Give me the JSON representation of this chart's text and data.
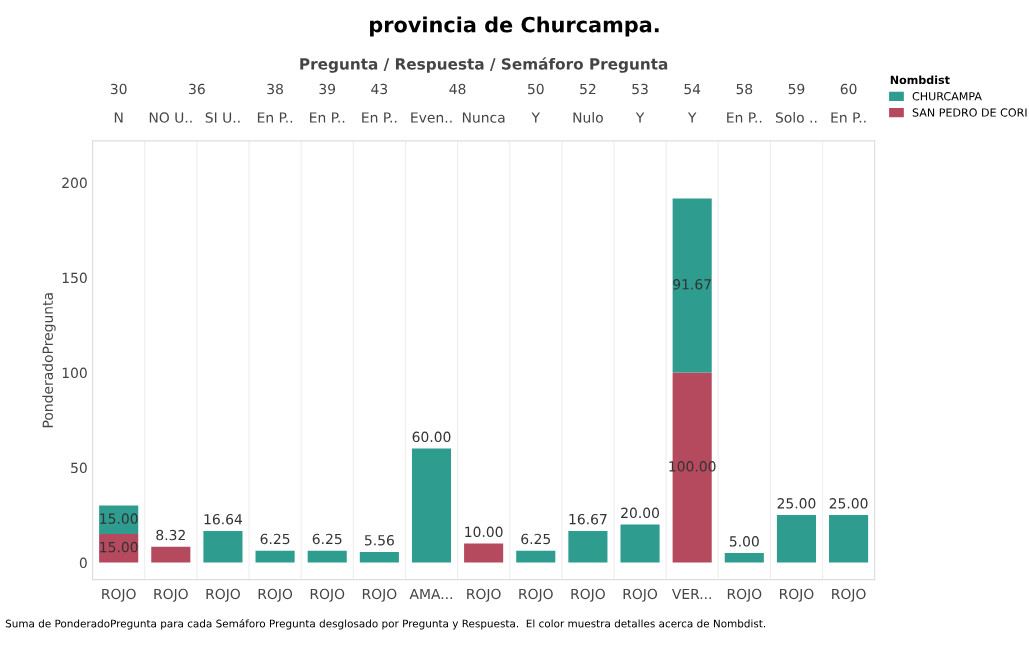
{
  "chart_data": {
    "type": "bar",
    "stacked": true,
    "title": "provincia de Churcampa.",
    "xlabel": "Pregunta / Respuesta / Semáforo Pregunta",
    "ylabel": "PonderadoPregunta",
    "legend_title": "Nombdist",
    "categories": [
      "30\nN\nROJO",
      "36\nNO U..\nROJO",
      "\nSI U..\nROJO",
      "38\nEn P..\nROJO",
      "39\nEn P..\nROJO",
      "43\nEn P..\nROJO",
      "48\nEven..\nAMA...",
      "\nNunca\nROJO",
      "50\nY\nROJO",
      "52\nNulo\nROJO",
      "53\nY\nROJO",
      "54\nY\nVER...",
      "58\nEn P..\nROJO",
      "59\nSolo ..\nROJO",
      "60\nEn P..\nROJO"
    ],
    "ylim": [
      -9,
      222
    ],
    "yticks": [
      0,
      50,
      100,
      150,
      200
    ],
    "series": [
      {
        "name": "SAN PEDRO DE CORI",
        "color": "#b5495e",
        "values": [
          15,
          8.32,
          null,
          null,
          null,
          null,
          null,
          10,
          null,
          null,
          null,
          100,
          null,
          null,
          null
        ],
        "value_labels": [
          "15.00",
          "8.32",
          null,
          null,
          null,
          null,
          null,
          "10.00",
          null,
          null,
          null,
          "100.00",
          null,
          null,
          null
        ]
      },
      {
        "name": "CHURCAMPA",
        "color": "#2e9c8e",
        "values": [
          15,
          null,
          16.64,
          6.25,
          6.25,
          5.56,
          60,
          null,
          6.25,
          16.67,
          20,
          91.67,
          5,
          25,
          25
        ],
        "value_labels": [
          "15.00",
          null,
          "16.64",
          "6.25",
          "6.25",
          "5.56",
          "60.00",
          null,
          "6.25",
          "16.67",
          "20.00",
          "91.67",
          "5.00",
          "25.00",
          "25.00"
        ]
      }
    ],
    "legend": "top right",
    "grid": false,
    "annotations": [
      "Suma de PonderadoPregunta para cada Semáforo Pregunta desglosado por Pregunta y Respuesta.  El color muestra detalles acerca de Nombdist."
    ]
  }
}
